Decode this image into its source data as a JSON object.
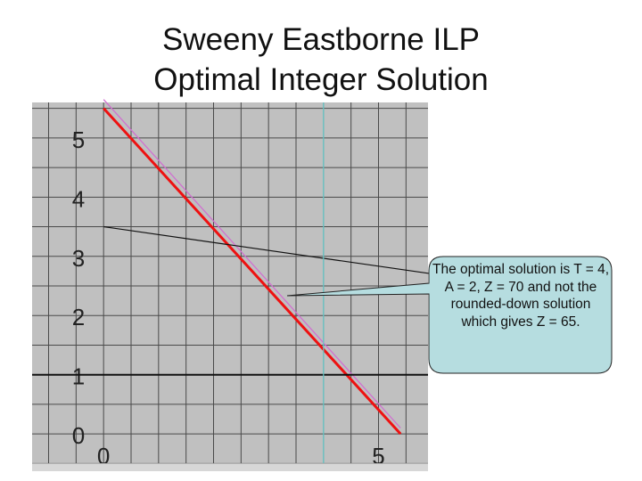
{
  "slide": {
    "title_line1": "Sweeny Eastborne ILP",
    "title_line2": "Optimal Integer Solution"
  },
  "callout": {
    "text": "The optimal solution is T = 4, A = 2, Z = 70 and not the rounded-down solution which gives Z = 65."
  },
  "chart_data": {
    "type": "line",
    "background": "#c0c0c0",
    "grid": true,
    "xlim": [
      -1.3,
      5.9
    ],
    "ylim": [
      -0.6,
      5.6
    ],
    "x_ticks": [
      0,
      5
    ],
    "y_ticks": [
      0,
      1,
      2,
      3,
      4,
      5
    ],
    "series": [
      {
        "color": "#ee1111",
        "points": [
          [
            0,
            5.5
          ],
          [
            5.4,
            0
          ]
        ]
      },
      {
        "color": "#d070d0",
        "points": [
          [
            0,
            5.65
          ],
          [
            5.4,
            0.1
          ]
        ]
      },
      {
        "color": "#111111",
        "points": [
          [
            0,
            3.5
          ],
          [
            6,
            2.7
          ]
        ]
      },
      {
        "color": "#111111",
        "points": [
          [
            -1.3,
            1
          ],
          [
            5.9,
            1
          ]
        ]
      },
      {
        "color": "#66cccc",
        "points": [
          [
            4,
            -0.6
          ],
          [
            4,
            5.6
          ]
        ]
      }
    ]
  }
}
